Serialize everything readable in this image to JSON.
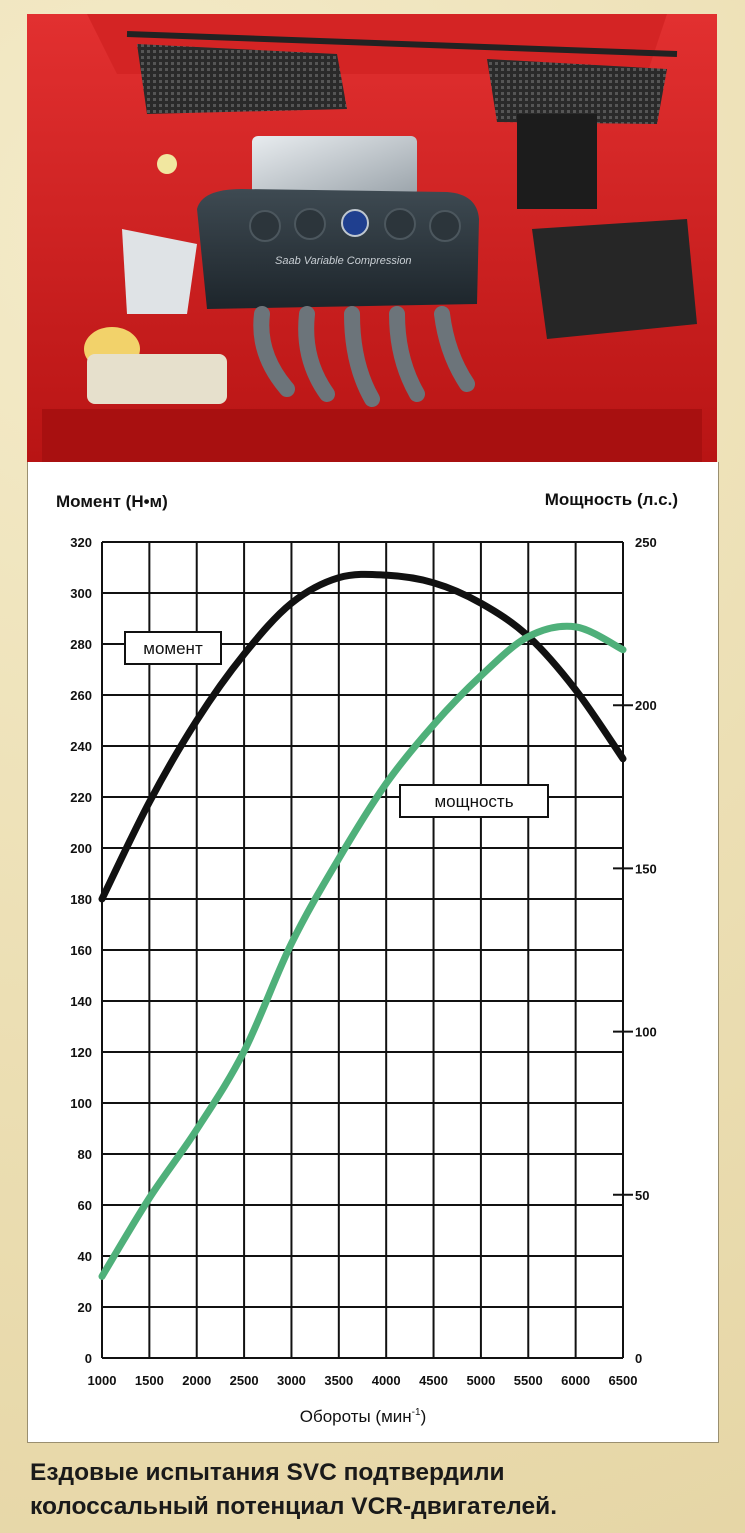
{
  "photo": {
    "engine_cover_text": "Saab Variable Compression"
  },
  "chart_data": {
    "type": "line",
    "ylabel_left": "Момент (Н•м)",
    "ylabel_right": "Мощность (л.с.)",
    "xlabel_main": "Обороты (мин",
    "xlabel_sup": "-1",
    "xlabel_close": ")",
    "x": [
      1000,
      1500,
      2000,
      2500,
      3000,
      3500,
      4000,
      4500,
      5000,
      5500,
      6000,
      6500
    ],
    "xlim": [
      1000,
      6500
    ],
    "ylim_left": [
      0,
      320
    ],
    "ylim_right": [
      0,
      250
    ],
    "x_ticks": [
      "1000",
      "1500",
      "2000",
      "2500",
      "3000",
      "3500",
      "4000",
      "4500",
      "5000",
      "5500",
      "6000",
      "6500"
    ],
    "y_ticks_left": [
      "0",
      "20",
      "40",
      "60",
      "80",
      "100",
      "120",
      "140",
      "160",
      "180",
      "200",
      "220",
      "240",
      "260",
      "280",
      "300",
      "320"
    ],
    "y_ticks_right": [
      "0",
      "50",
      "100",
      "150",
      "200",
      "250"
    ],
    "grid": true,
    "series": [
      {
        "name": "момент",
        "axis": "left",
        "color": "#111111",
        "x": [
          1000,
          1500,
          2000,
          2500,
          3000,
          3500,
          4000,
          4500,
          5000,
          5500,
          6000,
          6500
        ],
        "values": [
          180,
          218,
          250,
          276,
          296,
          306,
          307,
          304,
          296,
          283,
          262,
          235
        ]
      },
      {
        "name": "мощность",
        "axis": "right",
        "color": "#4fb07a",
        "x": [
          1000,
          1500,
          2000,
          2500,
          3000,
          3500,
          4000,
          4500,
          5000,
          5500,
          6000,
          6500
        ],
        "values": [
          25,
          49,
          70,
          94,
          127,
          153,
          176,
          194,
          209,
          221,
          224,
          217
        ]
      }
    ]
  },
  "caption": {
    "line1": "Ездовые испытания SVC подтвердили",
    "line2": "колоссальный потенциал VCR-двигателей."
  }
}
